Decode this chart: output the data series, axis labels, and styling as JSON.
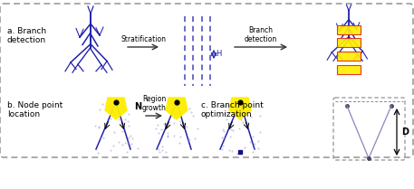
{
  "bg_color": "#ffffff",
  "border_color": "#888888",
  "branch_color": "#2222aa",
  "dashed_color": "#4444bb",
  "yellow_color": "#ffee00",
  "red_color": "#dd2222",
  "arrow_color": "#333333",
  "node_dot_color": "#000000",
  "scatter_color": "#9999cc",
  "label_a": "a. Branch\ndetection",
  "label_b": "b. Node point\nlocation",
  "label_c": "c. Branch point\noptimization",
  "label_strat": "Stratification",
  "label_branch": "Branch\ndetection",
  "label_region": "Region\ngrowth",
  "label_H": "H",
  "label_N": "N",
  "label_D": "D",
  "figsize": [
    4.57,
    2.09
  ],
  "dpi": 100
}
